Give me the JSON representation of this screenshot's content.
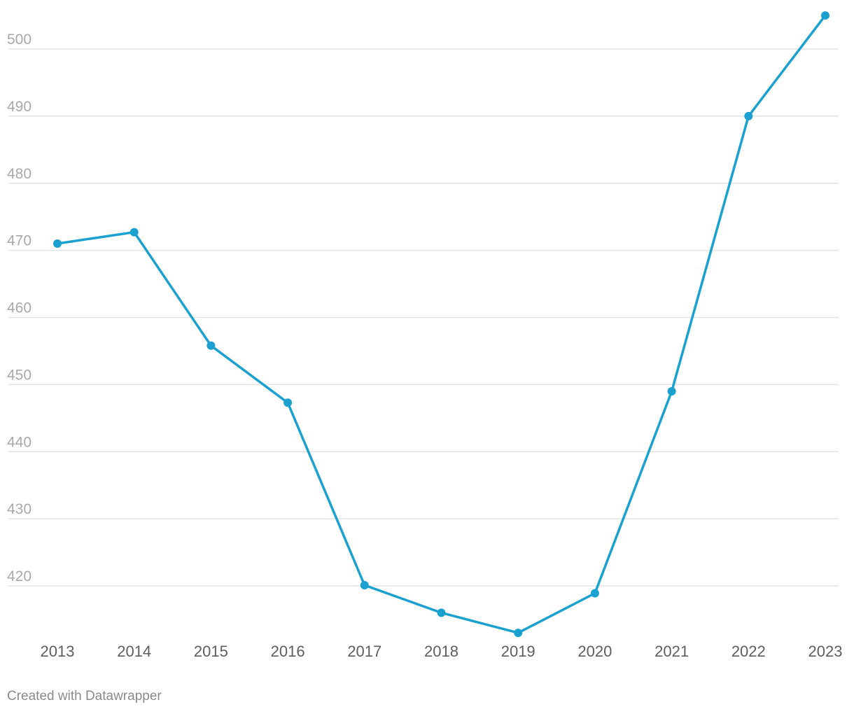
{
  "chart_data": {
    "type": "line",
    "title": "",
    "xlabel": "",
    "ylabel": "",
    "x": [
      "2013",
      "2014",
      "2015",
      "2016",
      "2017",
      "2018",
      "2019",
      "2020",
      "2021",
      "2022",
      "2023"
    ],
    "series": [
      {
        "values": [
          471,
          472.7,
          455.8,
          447.3,
          420.1,
          416,
          413,
          418.9,
          449,
          490,
          505
        ],
        "color": "#1ba1cf"
      }
    ],
    "y_ticks": [
      420,
      430,
      440,
      450,
      460,
      470,
      480,
      490,
      500
    ],
    "ylim": [
      412,
      505
    ],
    "grid": true,
    "markers": true
  },
  "footer": {
    "credit": "Created with Datawrapper"
  }
}
